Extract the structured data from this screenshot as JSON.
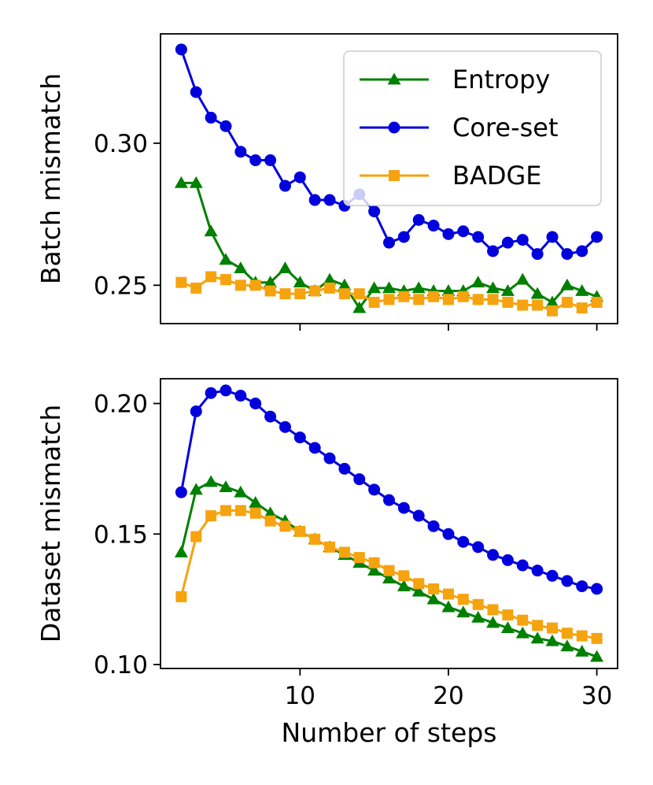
{
  "chart_data": [
    {
      "type": "line",
      "ylabel": "Batch mismatch",
      "xlabel": "",
      "xlim": [
        0.6,
        31.4
      ],
      "ylim": [
        0.2365,
        0.3385
      ],
      "xticks": [
        10,
        20,
        30
      ],
      "xtick_labels": [
        "",
        "",
        ""
      ],
      "yticks": [
        0.25,
        0.3
      ],
      "ytick_labels": [
        "0.25",
        "0.30"
      ],
      "legend": {
        "position": "top-right",
        "entries": [
          "Entropy",
          "Core-set",
          "BADGE"
        ]
      },
      "x": [
        2,
        3,
        4,
        5,
        6,
        7,
        8,
        9,
        10,
        11,
        12,
        13,
        14,
        15,
        16,
        17,
        18,
        19,
        20,
        21,
        22,
        23,
        24,
        25,
        26,
        27,
        28,
        29,
        30
      ],
      "series": [
        {
          "name": "Entropy",
          "color": "#008000",
          "marker": "triangle",
          "values": [
            0.286,
            0.286,
            0.269,
            0.259,
            0.256,
            0.251,
            0.251,
            0.256,
            0.251,
            0.248,
            0.252,
            0.25,
            0.242,
            0.249,
            0.249,
            0.248,
            0.249,
            0.248,
            0.248,
            0.248,
            0.251,
            0.249,
            0.248,
            0.252,
            0.247,
            0.244,
            0.25,
            0.248,
            0.246
          ]
        },
        {
          "name": "Core-set",
          "color": "#0000dd",
          "marker": "circle",
          "values": [
            0.333,
            0.318,
            0.309,
            0.306,
            0.297,
            0.294,
            0.294,
            0.285,
            0.288,
            0.28,
            0.28,
            0.278,
            0.282,
            0.276,
            0.265,
            0.267,
            0.273,
            0.271,
            0.268,
            0.269,
            0.267,
            0.262,
            0.265,
            0.266,
            0.261,
            0.267,
            0.261,
            0.262,
            0.267
          ]
        },
        {
          "name": "BADGE",
          "color": "#f5a30f",
          "marker": "square",
          "values": [
            0.251,
            0.249,
            0.253,
            0.252,
            0.25,
            0.25,
            0.248,
            0.247,
            0.247,
            0.248,
            0.249,
            0.247,
            0.247,
            0.244,
            0.245,
            0.246,
            0.245,
            0.246,
            0.245,
            0.246,
            0.245,
            0.245,
            0.244,
            0.243,
            0.243,
            0.241,
            0.244,
            0.242,
            0.244
          ]
        }
      ]
    },
    {
      "type": "line",
      "ylabel": "Dataset mismatch",
      "xlabel": "Number of steps",
      "xlim": [
        0.6,
        31.4
      ],
      "ylim": [
        0.0985,
        0.2095
      ],
      "xticks": [
        10,
        20,
        30
      ],
      "xtick_labels": [
        "10",
        "20",
        "30"
      ],
      "yticks": [
        0.1,
        0.15,
        0.2
      ],
      "ytick_labels": [
        "0.10",
        "0.15",
        "0.20"
      ],
      "x": [
        2,
        3,
        4,
        5,
        6,
        7,
        8,
        9,
        10,
        11,
        12,
        13,
        14,
        15,
        16,
        17,
        18,
        19,
        20,
        21,
        22,
        23,
        24,
        25,
        26,
        27,
        28,
        29,
        30
      ],
      "series": [
        {
          "name": "Entropy",
          "color": "#008000",
          "marker": "triangle",
          "values": [
            0.143,
            0.167,
            0.17,
            0.168,
            0.166,
            0.162,
            0.158,
            0.155,
            0.151,
            0.148,
            0.145,
            0.142,
            0.139,
            0.136,
            0.133,
            0.13,
            0.128,
            0.125,
            0.122,
            0.12,
            0.118,
            0.116,
            0.114,
            0.112,
            0.11,
            0.109,
            0.107,
            0.105,
            0.103
          ]
        },
        {
          "name": "Core-set",
          "color": "#0000dd",
          "marker": "circle",
          "values": [
            0.166,
            0.197,
            0.204,
            0.205,
            0.203,
            0.2,
            0.195,
            0.191,
            0.187,
            0.183,
            0.179,
            0.175,
            0.171,
            0.167,
            0.163,
            0.16,
            0.157,
            0.153,
            0.15,
            0.147,
            0.145,
            0.142,
            0.14,
            0.138,
            0.136,
            0.134,
            0.132,
            0.13,
            0.129
          ]
        },
        {
          "name": "BADGE",
          "color": "#f5a30f",
          "marker": "square",
          "values": [
            0.126,
            0.149,
            0.157,
            0.159,
            0.159,
            0.158,
            0.155,
            0.153,
            0.151,
            0.148,
            0.145,
            0.143,
            0.141,
            0.139,
            0.136,
            0.134,
            0.131,
            0.129,
            0.127,
            0.125,
            0.123,
            0.121,
            0.119,
            0.117,
            0.115,
            0.114,
            0.112,
            0.111,
            0.11
          ]
        }
      ]
    }
  ]
}
